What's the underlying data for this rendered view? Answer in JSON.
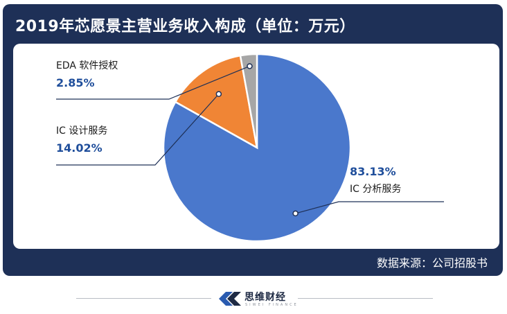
{
  "header": {
    "title": "2019年芯愿景主营业务收入构成（单位：万元）"
  },
  "chart_data": {
    "type": "pie",
    "title": "2019年芯愿景主营业务收入构成（单位：万元）",
    "slices": [
      {
        "name": "IC 分析服务",
        "value": 83.13,
        "label": "83.13%",
        "color": "#4a78cc"
      },
      {
        "name": "IC 设计服务",
        "value": 14.02,
        "label": "14.02%",
        "color": "#f08535"
      },
      {
        "name": "EDA 软件授权",
        "value": 2.85,
        "label": "2.85%",
        "color": "#a6a6a6"
      }
    ],
    "start_angle_deg": 0,
    "direction": "clockwise"
  },
  "footer": {
    "source": "数据来源：公司招股书",
    "brand_name": "思维财经",
    "brand_sub": "SIWEI FINANCE"
  }
}
